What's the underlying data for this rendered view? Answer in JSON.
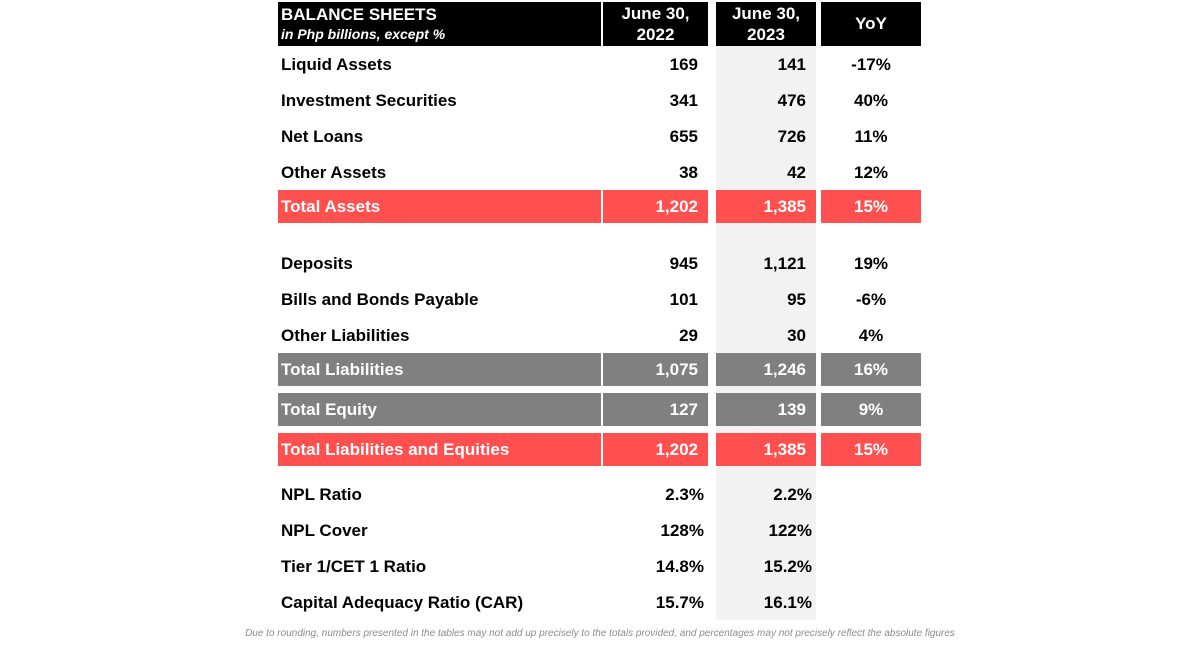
{
  "header": {
    "title": "BALANCE SHEETS",
    "subtitle": "in Php billions, except %",
    "col1": "June 30,\n2022",
    "col2": "June 30,\n2023",
    "col3": "YoY"
  },
  "rows": [
    {
      "label": "Liquid Assets",
      "v2022": "169",
      "v2023": "141",
      "yoy": "-17%",
      "style": "plain"
    },
    {
      "label": "Investment Securities",
      "v2022": "341",
      "v2023": "476",
      "yoy": "40%",
      "style": "plain"
    },
    {
      "label": "Net Loans",
      "v2022": "655",
      "v2023": "726",
      "yoy": "11%",
      "style": "plain"
    },
    {
      "label": "Other Assets",
      "v2022": "38",
      "v2023": "42",
      "yoy": "12%",
      "style": "plain"
    },
    {
      "label": "Total Assets",
      "v2022": "1,202",
      "v2023": "1,385",
      "yoy": "15%",
      "style": "red"
    },
    {
      "label": "Deposits",
      "v2022": "945",
      "v2023": "1,121",
      "yoy": "19%",
      "style": "plain"
    },
    {
      "label": "Bills and Bonds Payable",
      "v2022": "101",
      "v2023": "95",
      "yoy": "-6%",
      "style": "plain"
    },
    {
      "label": "Other Liabilities",
      "v2022": "29",
      "v2023": "30",
      "yoy": "4%",
      "style": "plain"
    },
    {
      "label": "Total Liabilities",
      "v2022": "1,075",
      "v2023": "1,246",
      "yoy": "16%",
      "style": "gray"
    },
    {
      "label": "Total Equity",
      "v2022": "127",
      "v2023": "139",
      "yoy": "9%",
      "style": "gray"
    },
    {
      "label": "Total Liabilities and Equities",
      "v2022": "1,202",
      "v2023": "1,385",
      "yoy": "15%",
      "style": "red"
    }
  ],
  "ratios": [
    {
      "label": "NPL Ratio",
      "v2022": "2.3%",
      "v2023": "2.2%"
    },
    {
      "label": "NPL Cover",
      "v2022": "128%",
      "v2023": "122%"
    },
    {
      "label": "Tier 1/CET 1 Ratio",
      "v2022": "14.8%",
      "v2023": "15.2%"
    },
    {
      "label": "Capital Adequacy Ratio (CAR)",
      "v2022": "15.7%",
      "v2023": "16.1%"
    }
  ],
  "footnote": "Due to rounding, numbers presented in the tables may not add up precisely to the totals provided, and percentages may not precisely reflect the absolute figures",
  "colors": {
    "header": "#000000",
    "total_red": "#ff4f4f",
    "subtotal_gray": "#808080",
    "column_shade": "#f2f2f2"
  }
}
